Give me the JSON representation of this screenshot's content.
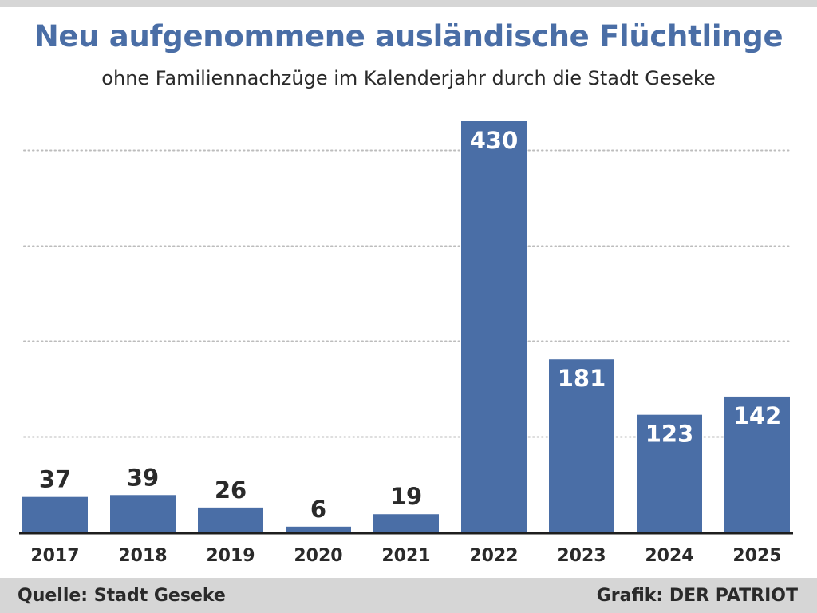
{
  "header": {
    "title": "Neu aufgenommene ausländische Flüchtlinge",
    "subtitle": "ohne Familiennachzüge im Kalenderjahr durch die Stadt Geseke"
  },
  "footer": {
    "source": "Quelle: Stadt Geseke",
    "credit": "Grafik: DER PATRIOT"
  },
  "colors": {
    "bar": "#4a6ea6",
    "title": "#4a6ea6",
    "label_outside": "#2a2a2a",
    "label_inside": "#ffffff",
    "gridline": "#bdbdbd",
    "band": "#d6d6d6"
  },
  "chart_data": {
    "type": "bar",
    "title": "Neu aufgenommene ausländische Flüchtlinge",
    "subtitle": "ohne Familiennachzüge im Kalenderjahr durch die Stadt Geseke",
    "xlabel": "",
    "ylabel": "",
    "categories": [
      "2017",
      "2018",
      "2019",
      "2020",
      "2021",
      "2022",
      "2023",
      "2024",
      "2025"
    ],
    "values": [
      37,
      39,
      26,
      6,
      19,
      430,
      181,
      123,
      142
    ],
    "value_labels": [
      "37",
      "39",
      "26",
      "6",
      "19",
      "430",
      "181",
      "123",
      "142"
    ],
    "ylim": [
      0,
      430
    ],
    "gridlines": [
      100,
      200,
      300,
      400
    ],
    "grid": "dotted horizontal",
    "legend": "none"
  }
}
